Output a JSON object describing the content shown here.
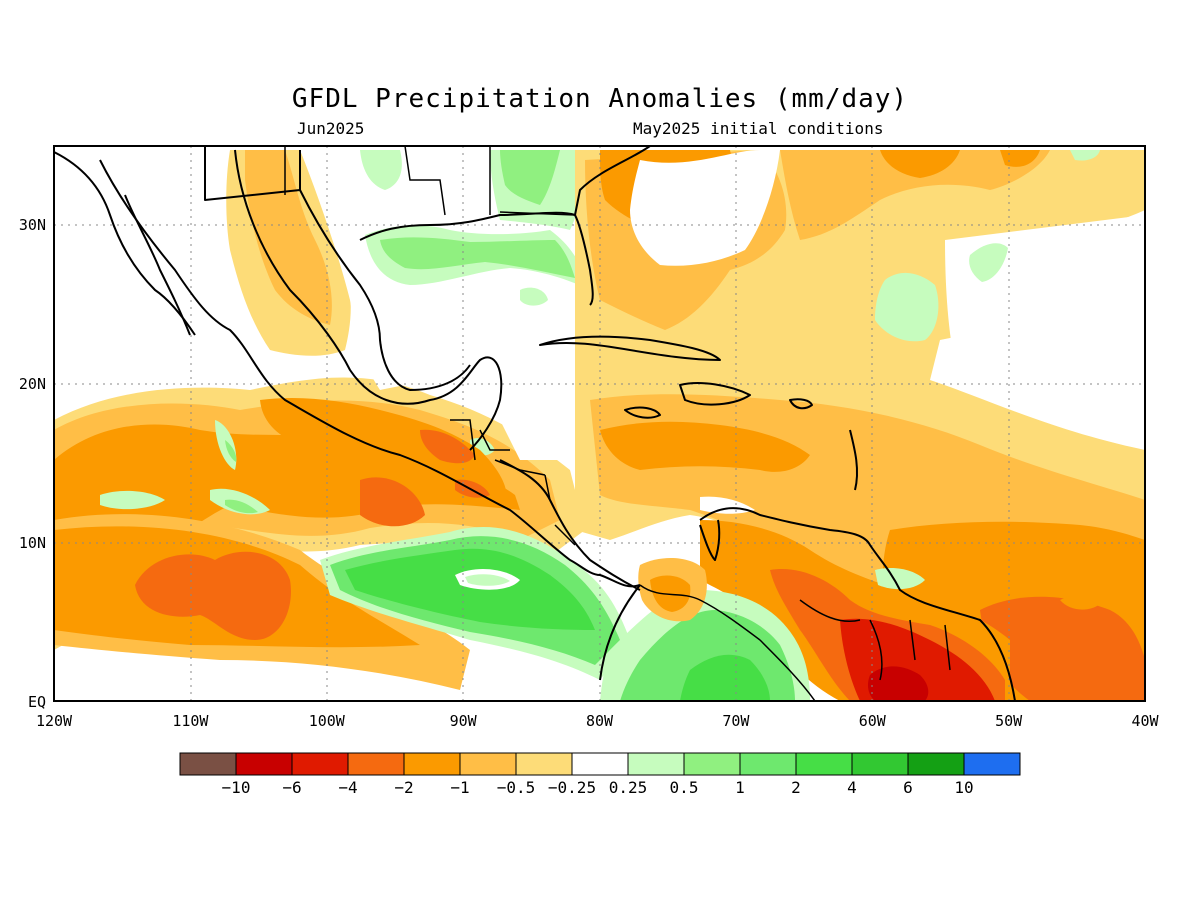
{
  "title": "GFDL Precipitation Anomalies (mm/day)",
  "subtitle_left": "Jun2025",
  "subtitle_right": "May2025 initial conditions",
  "map": {
    "lon_labels": [
      "120W",
      "110W",
      "100W",
      "90W",
      "80W",
      "70W",
      "60W",
      "50W",
      "40W"
    ],
    "lat_labels": [
      "EQ",
      "10N",
      "20N",
      "30N"
    ]
  },
  "legend": {
    "colors": [
      "#7a5044",
      "#c80000",
      "#e01a00",
      "#f56a10",
      "#fb9a00",
      "#ffbe46",
      "#fddc78",
      "#ffffff",
      "#c6fcbe",
      "#90f080",
      "#6ee86e",
      "#46de46",
      "#32c832",
      "#14a014",
      "#1e6ef0"
    ],
    "labels": [
      "-10",
      "-6",
      "-4",
      "-2",
      "-1",
      "-0.5",
      "-0.25",
      "0.25",
      "0.5",
      "1",
      "2",
      "4",
      "6",
      "10"
    ]
  }
}
